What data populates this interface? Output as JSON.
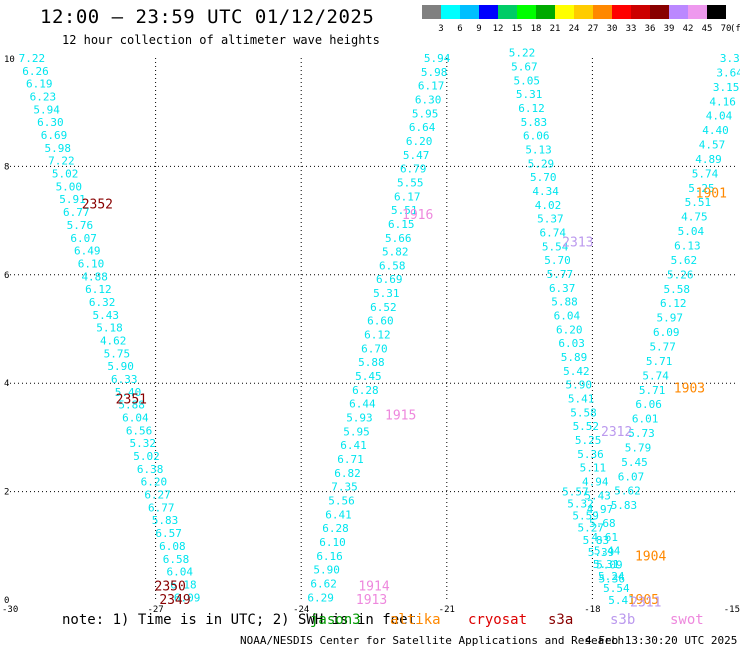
{
  "header": {
    "title": "12:00 — 23:59 UTC 01/12/2025",
    "subtitle": "12 hour collection of altimeter wave heights"
  },
  "color_scale": {
    "labels": [
      "3",
      "6",
      "9",
      "12",
      "15",
      "18",
      "21",
      "24",
      "27",
      "30",
      "33",
      "36",
      "39",
      "42",
      "45",
      "70",
      "(ft)"
    ],
    "colors": [
      "#808080",
      "#00ffff",
      "#00bfff",
      "#0000ff",
      "#00cc66",
      "#00ff00",
      "#00aa00",
      "#ffff00",
      "#ffcc00",
      "#ff8800",
      "#ff0000",
      "#cc0000",
      "#880000",
      "#bb88ff",
      "#ee99ee",
      "#000000"
    ]
  },
  "footer": {
    "note": "note: 1) Time is in UTC; 2) SWH is in feet",
    "satellites": [
      {
        "name": "jason3",
        "color": "#009900"
      },
      {
        "name": "altika",
        "color": "#ff8800"
      },
      {
        "name": "cryosat",
        "color": "#dd0000"
      },
      {
        "name": "s3a",
        "color": "#880000"
      },
      {
        "name": "s3b",
        "color": "#bb99ee"
      },
      {
        "name": "swot",
        "color": "#ee88dd"
      }
    ],
    "credit": "NOAA/NESDIS Center for Satellite Applications and Research",
    "timestamp": "4 Feb 13:30:20 UTC 2025"
  },
  "chart_data": {
    "type": "scatter",
    "xlim": [
      -30,
      -15
    ],
    "ylim": [
      0,
      10
    ],
    "xticks": [
      "-30",
      "-27",
      "-24",
      "-21",
      "-18",
      "-15"
    ],
    "yticks": [
      "0",
      "2",
      "4",
      "6",
      "8",
      "10"
    ],
    "grid": true,
    "value_color": "#00e5ee",
    "tracks": [
      {
        "name": "track-1",
        "x0": -29.55,
        "y0": 10.0,
        "x1": -26.35,
        "y1": 0.05,
        "values": [
          "7.22",
          "6.26",
          "6.19",
          "6.23",
          "5.94",
          "6.30",
          "6.69",
          "5.98",
          "7.22",
          "5.02",
          "5.00",
          "5.91",
          "6.77",
          "5.76",
          "6.07",
          "6.49",
          "6.10",
          "4.88",
          "6.12",
          "6.32",
          "5.43",
          "5.18",
          "4.62",
          "5.75",
          "5.90",
          "6.33",
          "5.40",
          "5.88",
          "6.04",
          "6.56",
          "5.32",
          "5.02",
          "6.38",
          "6.20",
          "6.27",
          "6.77",
          "5.83",
          "6.57",
          "6.08",
          "6.58",
          "6.04",
          "6.18",
          "6.09"
        ]
      },
      {
        "name": "track-2",
        "x0": -21.2,
        "y0": 10.0,
        "x1": -23.6,
        "y1": 0.05,
        "values": [
          "5.94",
          "5.98",
          "6.17",
          "6.30",
          "5.95",
          "6.64",
          "6.20",
          "5.47",
          "6.79",
          "5.55",
          "6.17",
          "5.51",
          "6.15",
          "5.66",
          "5.82",
          "6.58",
          "6.69",
          "5.31",
          "6.52",
          "6.60",
          "6.12",
          "6.70",
          "5.88",
          "5.45",
          "6.28",
          "6.44",
          "5.93",
          "5.95",
          "6.41",
          "6.71",
          "6.82",
          "7.35",
          "5.56",
          "6.41",
          "6.28",
          "6.10",
          "6.16",
          "5.90",
          "6.62",
          "6.29"
        ]
      },
      {
        "name": "track-3",
        "x0": -19.45,
        "y0": 10.1,
        "x1": -17.6,
        "y1": 0.4,
        "values": [
          "5.22",
          "5.67",
          "5.05",
          "5.31",
          "6.12",
          "5.83",
          "6.06",
          "5.13",
          "5.29",
          "5.70",
          "4.34",
          "4.02",
          "5.37",
          "6.74",
          "5.54",
          "5.70",
          "5.77",
          "6.37",
          "5.88",
          "6.04",
          "6.20",
          "6.03",
          "5.89",
          "5.42",
          "5.90",
          "5.41",
          "5.58",
          "5.52",
          "5.25",
          "5.36",
          "5.11",
          "4.94",
          "5.43",
          "4.97",
          "5.68",
          "4.61",
          "5.44",
          "5.09",
          "5.36"
        ]
      },
      {
        "name": "track-4",
        "x0": -18.35,
        "y0": 2.0,
        "x1": -17.4,
        "y1": 0.0,
        "values": [
          "5.57",
          "5.32",
          "5.59",
          "5.27",
          "5.83",
          "5.39",
          "5.31",
          "5.24",
          "5.54",
          "5.41"
        ]
      },
      {
        "name": "track-5",
        "x0": -15.1,
        "y0": 10.0,
        "x1": -17.35,
        "y1": 1.75,
        "values": [
          "3.39",
          "3.64",
          "3.15",
          "4.16",
          "4.04",
          "4.40",
          "4.57",
          "4.89",
          "5.74",
          "5.25",
          "5.51",
          "4.75",
          "5.04",
          "6.13",
          "5.62",
          "5.26",
          "5.58",
          "6.12",
          "5.97",
          "6.09",
          "5.77",
          "5.71",
          "5.74",
          "5.71",
          "6.06",
          "6.01",
          "5.73",
          "5.79",
          "5.45",
          "6.07",
          "5.62",
          "5.83"
        ]
      }
    ],
    "pass_labels": [
      {
        "text": "2352",
        "x": -28.2,
        "y": 7.3,
        "color": "#880000"
      },
      {
        "text": "2351",
        "x": -27.5,
        "y": 3.7,
        "color": "#880000"
      },
      {
        "text": "2350",
        "x": -26.7,
        "y": 0.25,
        "color": "#880000"
      },
      {
        "text": "2349",
        "x": -26.6,
        "y": 0.0,
        "color": "#880000"
      },
      {
        "text": "1916",
        "x": -21.6,
        "y": 7.1,
        "color": "#ee88dd"
      },
      {
        "text": "1915",
        "x": -21.95,
        "y": 3.4,
        "color": "#ee88dd"
      },
      {
        "text": "1914",
        "x": -22.5,
        "y": 0.25,
        "color": "#ee88dd"
      },
      {
        "text": "1913",
        "x": -22.55,
        "y": 0.0,
        "color": "#ee88dd"
      },
      {
        "text": "2313",
        "x": -18.3,
        "y": 6.6,
        "color": "#bb99ee"
      },
      {
        "text": "2312",
        "x": -17.5,
        "y": 3.1,
        "color": "#bb99ee"
      },
      {
        "text": "1901",
        "x": -15.55,
        "y": 7.5,
        "color": "#ff8800"
      },
      {
        "text": "1903",
        "x": -16.0,
        "y": 3.9,
        "color": "#ff8800"
      },
      {
        "text": "1904",
        "x": -16.8,
        "y": 0.8,
        "color": "#ff8800"
      },
      {
        "text": "1905",
        "x": -16.95,
        "y": 0.0,
        "color": "#ff8800"
      },
      {
        "text": "2311",
        "x": -16.9,
        "y": -0.05,
        "color": "#bb99ee"
      }
    ]
  }
}
